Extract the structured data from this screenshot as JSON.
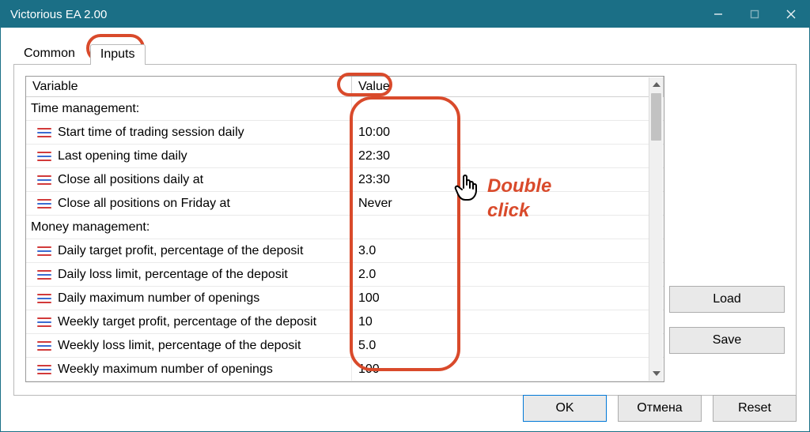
{
  "window": {
    "title": "Victorious EA 2.00"
  },
  "tabs": {
    "common": "Common",
    "inputs": "Inputs",
    "active": "inputs"
  },
  "columns": {
    "variable": "Variable",
    "value": "Value"
  },
  "sections": [
    {
      "label": "Time management:",
      "params": [
        {
          "name": "Start time of trading session daily",
          "value": "10:00"
        },
        {
          "name": "Last opening time daily",
          "value": "22:30"
        },
        {
          "name": "Close all positions daily at",
          "value": "23:30"
        },
        {
          "name": "Close all positions on Friday at",
          "value": "Never"
        }
      ]
    },
    {
      "label": "Money management:",
      "params": [
        {
          "name": "Daily target profit, percentage of the deposit",
          "value": "3.0"
        },
        {
          "name": "Daily loss limit, percentage of the deposit",
          "value": "2.0"
        },
        {
          "name": "Daily maximum number of openings",
          "value": "100"
        },
        {
          "name": "Weekly target profit, percentage of the deposit",
          "value": "10"
        },
        {
          "name": "Weekly loss limit, percentage of the deposit",
          "value": "5.0"
        },
        {
          "name": "Weekly maximum number of openings",
          "value": "100"
        }
      ]
    }
  ],
  "buttons": {
    "load": "Load",
    "save": "Save",
    "ok": "OK",
    "cancel": "Отмена",
    "reset": "Reset"
  },
  "annotation": {
    "text_line1": "Double",
    "text_line2": "click"
  },
  "colors": {
    "titlebar": "#1b6f86",
    "annotation": "#d94a2b",
    "icon_red": "#d23a3a",
    "icon_blue": "#3a6cd2",
    "border": "#b9b9b9",
    "button_bg": "#e9e9e9",
    "button_border": "#adadad",
    "ok_border": "#0078d7"
  }
}
